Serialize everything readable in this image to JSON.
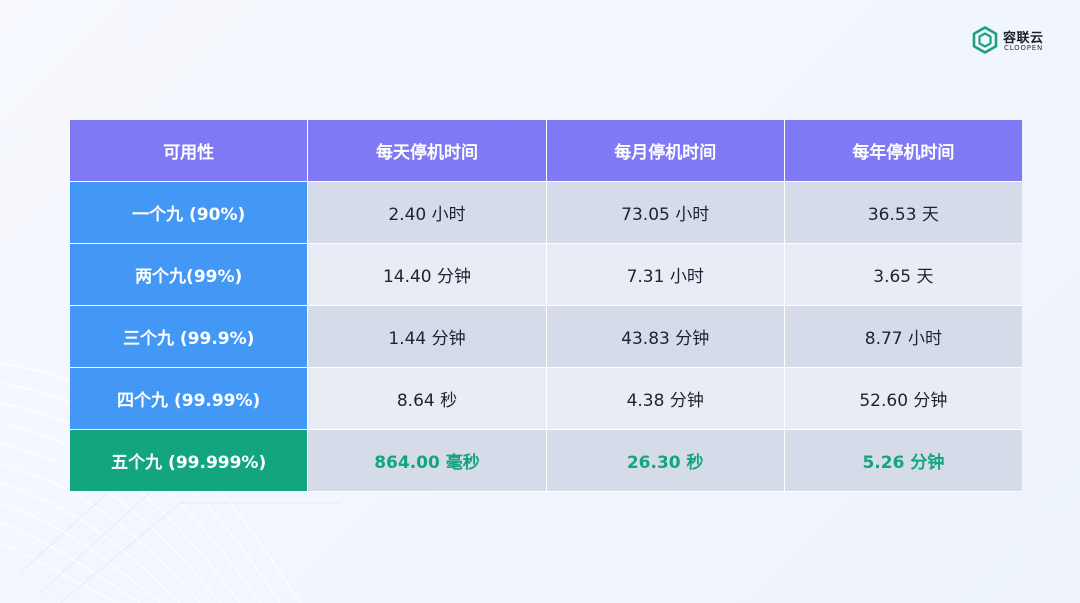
{
  "logo": {
    "cn": "容联云",
    "en": "CLOOPEN",
    "icon": "cloopen-hexagon-logo-icon",
    "color": "#1aa27a"
  },
  "colors": {
    "header": "#7f79f5",
    "row_label": "#4398f5",
    "highlight_label": "#12a57e",
    "highlight_text": "#13a57d",
    "cell_dark": "#d6dbe9",
    "cell_light": "#e9ecf4"
  },
  "table": {
    "headers": [
      "可用性",
      "每天停机时间",
      "每月停机时间",
      "每年停机时间"
    ],
    "rows": [
      {
        "label": "一个九 (90%)",
        "values": [
          "2.40 小时",
          "73.05 小时",
          "36.53 天"
        ]
      },
      {
        "label": "两个九(99%)",
        "values": [
          "14.40 分钟",
          "7.31 小时",
          "3.65 天"
        ]
      },
      {
        "label": "三个九 (99.9%)",
        "values": [
          "1.44 分钟",
          "43.83 分钟",
          "8.77 小时"
        ]
      },
      {
        "label": "四个九 (99.99%)",
        "values": [
          "8.64 秒",
          "4.38 分钟",
          "52.60 分钟"
        ]
      },
      {
        "label": "五个九 (99.999%)",
        "values": [
          "864.00 毫秒",
          "26.30 秒",
          "5.26 分钟"
        ]
      }
    ]
  }
}
